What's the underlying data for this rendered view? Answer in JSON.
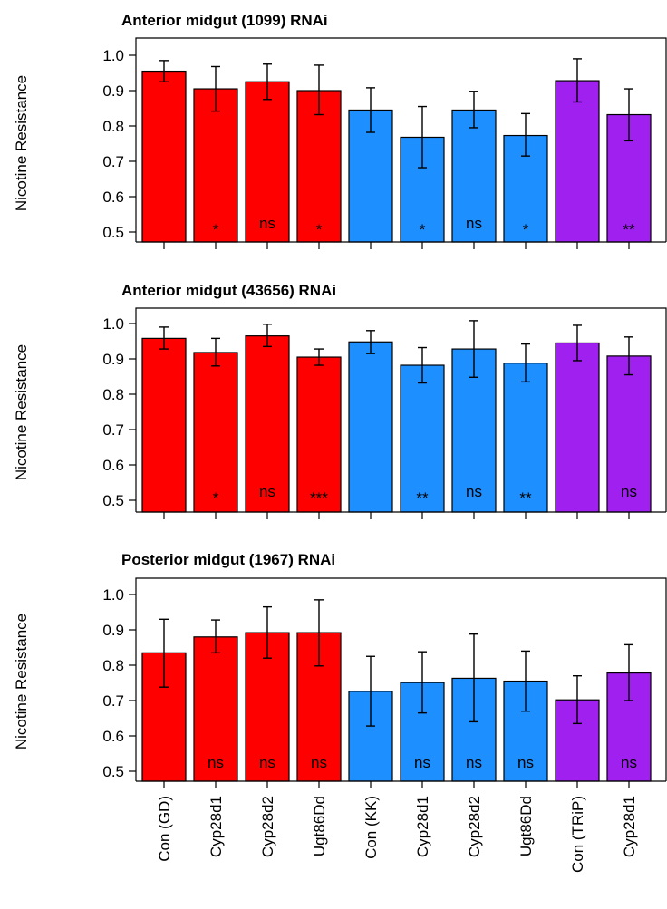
{
  "colors": {
    "GD": "#ff0000",
    "KK": "#1e8fff",
    "TRiP": "#a020f0"
  },
  "chart_data": {
    "type": "bar",
    "categories": [
      "Con (GD)",
      "Cyp28d1",
      "Cyp28d2",
      "Ugt86Dd",
      "Con (KK)",
      "Cyp28d1",
      "Cyp28d2",
      "Ugt86Dd",
      "Con (TRiP)",
      "Cyp28d1"
    ],
    "bar_groups": [
      "GD",
      "GD",
      "GD",
      "GD",
      "KK",
      "KK",
      "KK",
      "KK",
      "TRiP",
      "TRiP"
    ],
    "ylabel": "Nicotine Resistance",
    "ylim": [
      0.5,
      1.0
    ],
    "yticks": [
      "0.5",
      "0.6",
      "0.7",
      "0.8",
      "0.9",
      "1.0"
    ],
    "panels": [
      {
        "title": "Anterior midgut (1099) RNAi",
        "values": [
          0.955,
          0.905,
          0.925,
          0.9,
          0.845,
          0.768,
          0.845,
          0.773,
          0.928,
          0.832
        ],
        "err_low": [
          0.925,
          0.842,
          0.875,
          0.832,
          0.782,
          0.682,
          0.795,
          0.715,
          0.868,
          0.758
        ],
        "err_high": [
          0.985,
          0.968,
          0.975,
          0.972,
          0.908,
          0.855,
          0.898,
          0.835,
          0.99,
          0.905
        ],
        "significance": [
          "",
          "*",
          "ns",
          "*",
          "",
          "*",
          "ns",
          "*",
          "",
          "**"
        ]
      },
      {
        "title": "Anterior midgut (43656) RNAi",
        "values": [
          0.958,
          0.918,
          0.965,
          0.905,
          0.948,
          0.882,
          0.928,
          0.888,
          0.945,
          0.908
        ],
        "err_low": [
          0.928,
          0.88,
          0.935,
          0.882,
          0.915,
          0.832,
          0.848,
          0.835,
          0.895,
          0.855
        ],
        "err_high": [
          0.99,
          0.958,
          0.998,
          0.928,
          0.98,
          0.932,
          1.008,
          0.942,
          0.995,
          0.962
        ],
        "significance": [
          "",
          "*",
          "ns",
          "***",
          "",
          "**",
          "ns",
          "**",
          "",
          "ns"
        ]
      },
      {
        "title": "Posterior midgut (1967) RNAi",
        "values": [
          0.835,
          0.88,
          0.892,
          0.892,
          0.726,
          0.751,
          0.763,
          0.755,
          0.702,
          0.778
        ],
        "err_low": [
          0.738,
          0.835,
          0.82,
          0.798,
          0.628,
          0.665,
          0.64,
          0.67,
          0.635,
          0.7
        ],
        "err_high": [
          0.93,
          0.928,
          0.965,
          0.985,
          0.825,
          0.838,
          0.888,
          0.84,
          0.77,
          0.858
        ],
        "significance": [
          "",
          "ns",
          "ns",
          "ns",
          "",
          "ns",
          "ns",
          "ns",
          "",
          "ns"
        ]
      }
    ]
  }
}
